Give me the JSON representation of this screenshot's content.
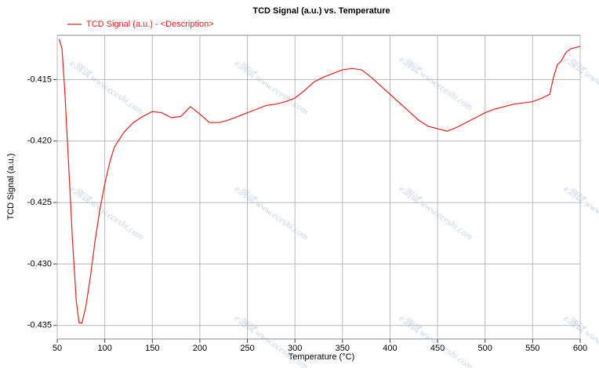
{
  "chart_data": {
    "type": "line",
    "title": "TCD Signal (a.u.) vs. Temperature",
    "x_label": "Temperature (°C)",
    "y_label": "TCD Signal (a.u.)",
    "watermark": "e测试 www.eceshi.com",
    "x": [
      52,
      55,
      58,
      62,
      66,
      70,
      73,
      76,
      80,
      85,
      90,
      95,
      100,
      105,
      110,
      120,
      130,
      140,
      150,
      160,
      170,
      180,
      190,
      200,
      210,
      220,
      230,
      240,
      250,
      260,
      270,
      280,
      290,
      300,
      310,
      320,
      330,
      340,
      350,
      360,
      370,
      380,
      390,
      400,
      410,
      420,
      430,
      440,
      450,
      460,
      470,
      480,
      490,
      500,
      510,
      520,
      530,
      540,
      550,
      560,
      568,
      572,
      576,
      580,
      585,
      590,
      595,
      600
    ],
    "series": [
      {
        "name": "TCD Signal (a.u.) - <Description>",
        "color": "#e8201c",
        "values": [
          -0.4117,
          -0.4125,
          -0.416,
          -0.422,
          -0.428,
          -0.433,
          -0.4348,
          -0.4348,
          -0.4335,
          -0.431,
          -0.428,
          -0.4255,
          -0.4235,
          -0.4218,
          -0.4205,
          -0.4193,
          -0.4185,
          -0.418,
          -0.4176,
          -0.4177,
          -0.4181,
          -0.418,
          -0.4172,
          -0.4178,
          -0.4185,
          -0.4185,
          -0.4183,
          -0.418,
          -0.4177,
          -0.4174,
          -0.4171,
          -0.417,
          -0.4168,
          -0.4165,
          -0.4159,
          -0.4152,
          -0.4148,
          -0.4145,
          -0.4142,
          -0.4141,
          -0.4142,
          -0.4148,
          -0.4155,
          -0.4162,
          -0.4169,
          -0.4176,
          -0.4183,
          -0.4188,
          -0.419,
          -0.4192,
          -0.4189,
          -0.4185,
          -0.4181,
          -0.4177,
          -0.4174,
          -0.4172,
          -0.417,
          -0.4169,
          -0.4168,
          -0.4165,
          -0.4162,
          -0.4148,
          -0.4138,
          -0.4135,
          -0.4128,
          -0.4125,
          -0.4124,
          -0.4123
        ]
      }
    ],
    "xlim": [
      50,
      600
    ],
    "xticks": [
      50,
      100,
      150,
      200,
      250,
      300,
      350,
      400,
      450,
      500,
      550,
      600
    ],
    "ylim": [
      -0.4361,
      -0.4114
    ],
    "yticks": [
      {
        "value": -0.415,
        "label": "-0.415"
      },
      {
        "value": -0.42,
        "label": "-0.420"
      },
      {
        "value": -0.425,
        "label": "-0.425"
      },
      {
        "value": -0.43,
        "label": "-0.430"
      },
      {
        "value": -0.435,
        "label": "-0.435"
      }
    ],
    "grid": true
  }
}
